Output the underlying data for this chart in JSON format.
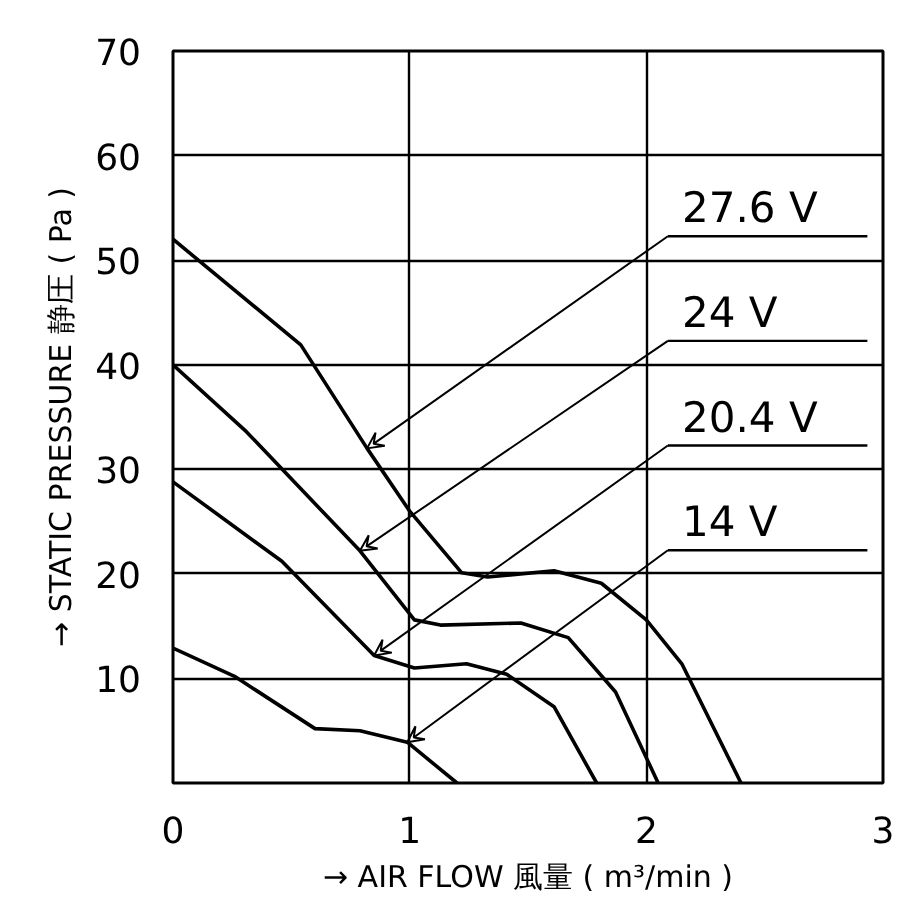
{
  "chart_data": {
    "type": "line",
    "xlabel": "→ AIR FLOW 風量 ( m³/min )",
    "ylabel": "→ STATIC PRESSURE 静圧 ( Pa )",
    "xlim": [
      0,
      3
    ],
    "ylim": [
      0,
      70
    ],
    "xticks": [
      0,
      1,
      2,
      3
    ],
    "yticks": [
      {
        "value": 0,
        "label": null
      },
      10,
      20,
      30,
      40,
      50,
      60,
      70
    ],
    "grid": true,
    "marker": "none",
    "line_style": "solid",
    "series": [
      {
        "color": "#000000",
        "x": [
          0,
          0.54,
          0.82,
          1.0,
          1.22,
          1.33,
          1.61,
          1.81,
          2.0,
          2.15,
          2.4
        ],
        "values": [
          52,
          41.9,
          32,
          26,
          20.1,
          19.7,
          20.3,
          19.1,
          15.6,
          11.4,
          0
        ]
      },
      {
        "color": "#000000",
        "x": [
          0,
          0.31,
          0.79,
          1.02,
          1.13,
          1.47,
          1.67,
          1.87,
          2.05
        ],
        "values": [
          40,
          33.6,
          22.2,
          15.6,
          15.1,
          15.3,
          13.9,
          8.7,
          0
        ]
      },
      {
        "color": "#000000",
        "x": [
          0,
          0.46,
          0.85,
          1.02,
          1.24,
          1.41,
          1.61,
          1.79
        ],
        "values": [
          28.8,
          21.2,
          12.2,
          11,
          11.4,
          10.4,
          7.3,
          0
        ]
      },
      {
        "color": "#000000",
        "x": [
          0,
          0.26,
          0.6,
          0.79,
          0.99,
          1.2
        ],
        "values": [
          12.9,
          10.2,
          5.2,
          5.0,
          3.9,
          0
        ]
      }
    ],
    "annotations": [
      {
        "text": "27.6 V",
        "x": 0.82,
        "y": 32
      },
      {
        "text": "24 V",
        "x": 0.79,
        "y": 22.2
      },
      {
        "text": "20.4 V",
        "x": 0.85,
        "y": 12.2
      },
      {
        "text": "14 V",
        "x": 0.99,
        "y": 3.9
      }
    ]
  }
}
